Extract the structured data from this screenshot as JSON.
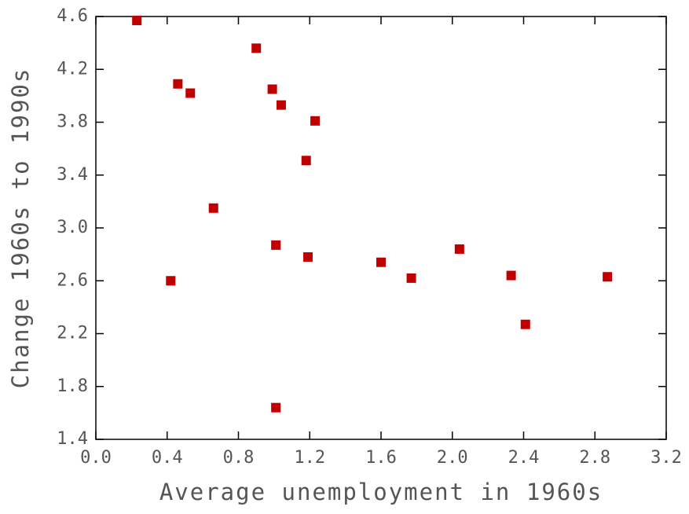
{
  "chart_data": {
    "type": "scatter",
    "xlabel": "Average unemployment in 1960s",
    "ylabel": "Change 1960s to 1990s",
    "color": "#c00000",
    "x": [
      0.23,
      0.46,
      0.53,
      0.9,
      0.99,
      1.04,
      1.23,
      1.18,
      0.66,
      0.42,
      1.01,
      1.19,
      1.6,
      1.77,
      2.04,
      2.33,
      2.41,
      2.87,
      1.01
    ],
    "values": [
      4.57,
      4.09,
      4.02,
      4.36,
      4.05,
      3.93,
      3.81,
      3.51,
      3.15,
      2.6,
      2.87,
      2.78,
      2.74,
      2.62,
      2.84,
      2.64,
      2.27,
      2.63,
      1.64
    ],
    "xlim": [
      0,
      3.2
    ],
    "xticks": [
      {
        "value": 0,
        "label": "0.0"
      },
      0.4,
      0.8,
      1.2,
      1.6,
      {
        "value": 2,
        "label": "2.0"
      },
      2.4,
      2.8,
      3.2
    ],
    "ylim": [
      1.4,
      4.6
    ],
    "yticks": [
      1.4,
      1.8,
      2.2,
      2.6,
      {
        "value": 3,
        "label": "3.0"
      },
      3.4,
      3.8,
      4.2,
      4.6
    ]
  }
}
